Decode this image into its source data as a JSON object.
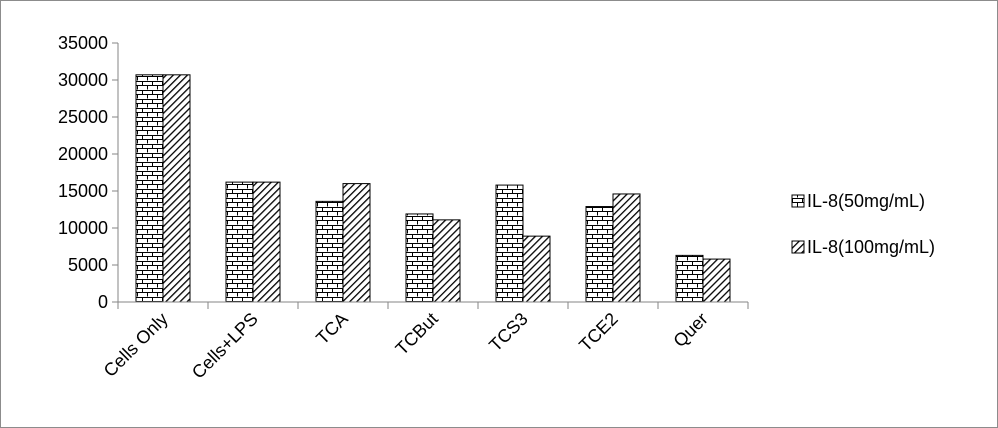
{
  "chart_data": {
    "type": "bar",
    "title": "",
    "xlabel": "",
    "ylabel": "",
    "categories": [
      "Cells Only",
      "Cells+LPS",
      "TCA",
      "TCBut",
      "TCS3",
      "TCE2",
      "Quer"
    ],
    "series": [
      {
        "name": "IL-8(50mg/mL)",
        "pattern": "brick",
        "values": [
          30700,
          16200,
          13600,
          11900,
          15800,
          12900,
          6300
        ]
      },
      {
        "name": "IL-8(100mg/mL)",
        "pattern": "diagonal",
        "values": [
          30700,
          16200,
          16000,
          11100,
          8900,
          14600,
          5800
        ]
      }
    ],
    "ylim": [
      0,
      35000
    ],
    "yticks": [
      0,
      5000,
      10000,
      15000,
      20000,
      25000,
      30000,
      35000
    ],
    "grid": false,
    "legend_position": "right",
    "colors": {
      "bar_fill": "#ffffff",
      "bar_stroke": "#000000",
      "axis": "#868686",
      "border": "#8c8c8c"
    }
  }
}
